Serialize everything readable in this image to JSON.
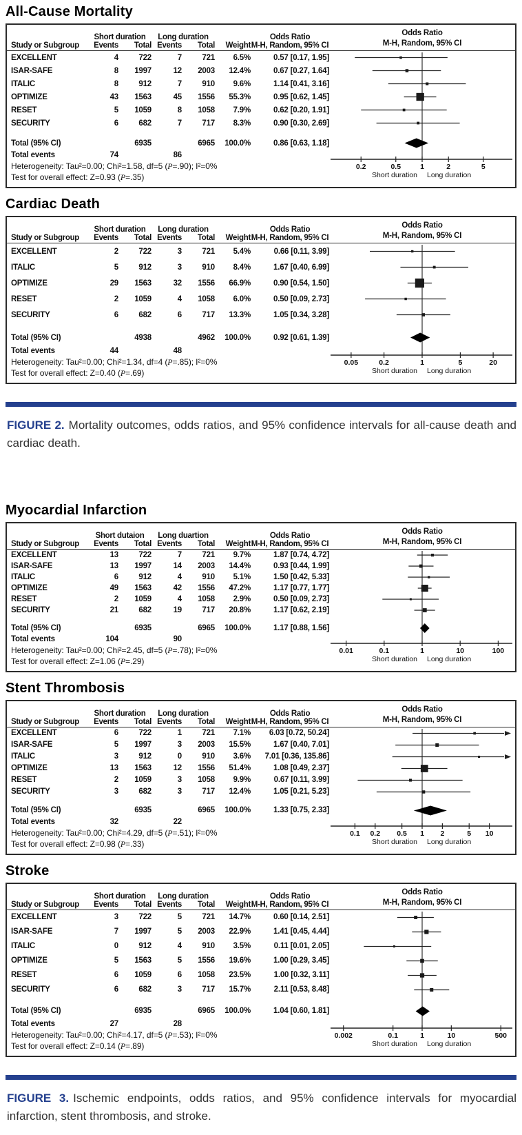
{
  "page": {
    "background": "#ffffff",
    "accent_navy": "#24408e",
    "border_color": "#2b2b2b"
  },
  "captions": [
    {
      "label": "FIGURE 2.",
      "text": "Mortality outcomes, odds ratios, and 95% confidence intervals for all-cause death and cardiac death."
    },
    {
      "label": "FIGURE 3.",
      "text": "Ischemic endpoints, odds ratios, and 95% confidence intervals for myocardial infarction, stent thrombosis, and stroke."
    }
  ],
  "chart_data": [
    {
      "type": "scatter",
      "subtype": "forest-plot",
      "title": "All-Cause Mortality",
      "group1_header": "Short duration",
      "group2_header": "Long duration",
      "or_header": "Odds Ratio",
      "method_header": "M-H, Random, 95% CI",
      "col_headers": [
        "Study or Subgroup",
        "Events",
        "Total",
        "Events",
        "Total",
        "Weight"
      ],
      "studies": [
        {
          "name": "EXCELLENT",
          "events1": "4",
          "total1": "722",
          "events2": "7",
          "total2": "721",
          "weight": "6.5%",
          "weight_pct": 6.5,
          "or": 0.57,
          "ci_lo": 0.17,
          "ci_hi": 1.95,
          "or_text": "0.57 [0.17, 1.95]"
        },
        {
          "name": "ISAR-SAFE",
          "events1": "8",
          "total1": "1997",
          "events2": "12",
          "total2": "2003",
          "weight": "12.4%",
          "weight_pct": 12.4,
          "or": 0.67,
          "ci_lo": 0.27,
          "ci_hi": 1.64,
          "or_text": "0.67 [0.27, 1.64]"
        },
        {
          "name": "ITALIC",
          "events1": "8",
          "total1": "912",
          "events2": "7",
          "total2": "910",
          "weight": "9.6%",
          "weight_pct": 9.6,
          "or": 1.14,
          "ci_lo": 0.41,
          "ci_hi": 3.16,
          "or_text": "1.14 [0.41, 3.16]"
        },
        {
          "name": "OPTIMIZE",
          "events1": "43",
          "total1": "1563",
          "events2": "45",
          "total2": "1556",
          "weight": "55.3%",
          "weight_pct": 55.3,
          "or": 0.95,
          "ci_lo": 0.62,
          "ci_hi": 1.45,
          "or_text": "0.95 [0.62, 1.45]"
        },
        {
          "name": "RESET",
          "events1": "5",
          "total1": "1059",
          "events2": "8",
          "total2": "1058",
          "weight": "7.9%",
          "weight_pct": 7.9,
          "or": 0.62,
          "ci_lo": 0.2,
          "ci_hi": 1.91,
          "or_text": "0.62 [0.20, 1.91]"
        },
        {
          "name": "SECURITY",
          "events1": "6",
          "total1": "682",
          "events2": "7",
          "total2": "717",
          "weight": "8.3%",
          "weight_pct": 8.3,
          "or": 0.9,
          "ci_lo": 0.3,
          "ci_hi": 2.69,
          "or_text": "0.90 [0.30, 2.69]"
        }
      ],
      "total": {
        "label": "Total (95% CI)",
        "total1": "6935",
        "total2": "6965",
        "weight": "100.0%",
        "or": 0.86,
        "ci_lo": 0.63,
        "ci_hi": 1.18,
        "or_text": "0.86 [0.63, 1.18]"
      },
      "total_events": {
        "label": "Total events",
        "events1": "74",
        "events2": "86"
      },
      "heterogeneity": "Heterogeneity: Tau²=0.00; Chi²=1.58, df=5 (P=.90); I²=0%",
      "overall_test": "Test for overall effect: Z=0.93 (P=.35)",
      "axis_ticks": [
        0.2,
        0.5,
        1,
        2,
        5
      ],
      "xlabel_left": "Short duration",
      "xlabel_right": "Long duration"
    },
    {
      "type": "scatter",
      "subtype": "forest-plot",
      "title": "Cardiac Death",
      "group1_header": "Short duration",
      "group2_header": "Long duration",
      "or_header": "Odds Ratio",
      "method_header": "M-H, Random, 95% CI",
      "col_headers": [
        "Study or Subgroup",
        "Events",
        "Total",
        "Events",
        "Total",
        "Weight"
      ],
      "studies": [
        {
          "name": "EXCELLENT",
          "events1": "2",
          "total1": "722",
          "events2": "3",
          "total2": "721",
          "weight": "5.4%",
          "weight_pct": 5.4,
          "or": 0.66,
          "ci_lo": 0.11,
          "ci_hi": 3.99,
          "or_text": "0.66 [0.11, 3.99]"
        },
        {
          "name": "ITALIC",
          "events1": "5",
          "total1": "912",
          "events2": "3",
          "total2": "910",
          "weight": "8.4%",
          "weight_pct": 8.4,
          "or": 1.67,
          "ci_lo": 0.4,
          "ci_hi": 6.99,
          "or_text": "1.67 [0.40, 6.99]"
        },
        {
          "name": "OPTIMIZE",
          "events1": "29",
          "total1": "1563",
          "events2": "32",
          "total2": "1556",
          "weight": "66.9%",
          "weight_pct": 66.9,
          "or": 0.9,
          "ci_lo": 0.54,
          "ci_hi": 1.5,
          "or_text": "0.90 [0.54, 1.50]"
        },
        {
          "name": "RESET",
          "events1": "2",
          "total1": "1059",
          "events2": "4",
          "total2": "1058",
          "weight": "6.0%",
          "weight_pct": 6.0,
          "or": 0.5,
          "ci_lo": 0.09,
          "ci_hi": 2.73,
          "or_text": "0.50 [0.09, 2.73]"
        },
        {
          "name": "SECURITY",
          "events1": "6",
          "total1": "682",
          "events2": "6",
          "total2": "717",
          "weight": "13.3%",
          "weight_pct": 13.3,
          "or": 1.05,
          "ci_lo": 0.34,
          "ci_hi": 3.28,
          "or_text": "1.05 [0.34, 3.28]"
        }
      ],
      "total": {
        "label": "Total (95% CI)",
        "total1": "4938",
        "total2": "4962",
        "weight": "100.0%",
        "or": 0.92,
        "ci_lo": 0.61,
        "ci_hi": 1.39,
        "or_text": "0.92 [0.61, 1.39]"
      },
      "total_events": {
        "label": "Total events",
        "events1": "44",
        "events2": "48"
      },
      "heterogeneity": "Heterogeneity: Tau²=0.00; Chi²=1.34, df=4 (P=.85); I²=0%",
      "overall_test": "Test for overall effect: Z=0.40 (P=.69)",
      "axis_ticks": [
        0.05,
        0.2,
        1,
        5,
        20
      ],
      "xlabel_left": "Short duration",
      "xlabel_right": "Long duration"
    },
    {
      "type": "scatter",
      "subtype": "forest-plot",
      "title": "Myocardial Infarction",
      "group1_header": "Short dutaion",
      "group2_header": "Long duartion",
      "or_header": "Odds Ratio",
      "method_header": "M-H, Random, 95% CI",
      "col_headers": [
        "Study or Subgroup",
        "Events",
        "Total",
        "Events",
        "Total",
        "Weight"
      ],
      "studies": [
        {
          "name": "EXCELLENT",
          "events1": "13",
          "total1": "722",
          "events2": "7",
          "total2": "721",
          "weight": "9.7%",
          "weight_pct": 9.7,
          "or": 1.87,
          "ci_lo": 0.74,
          "ci_hi": 4.72,
          "or_text": "1.87 [0.74, 4.72]"
        },
        {
          "name": "ISAR-SAFE",
          "events1": "13",
          "total1": "1997",
          "events2": "14",
          "total2": "2003",
          "weight": "14.4%",
          "weight_pct": 14.4,
          "or": 0.93,
          "ci_lo": 0.44,
          "ci_hi": 1.99,
          "or_text": "0.93 [0.44, 1.99]"
        },
        {
          "name": "ITALIC",
          "events1": "6",
          "total1": "912",
          "events2": "4",
          "total2": "910",
          "weight": "5.1%",
          "weight_pct": 5.1,
          "or": 1.5,
          "ci_lo": 0.42,
          "ci_hi": 5.33,
          "or_text": "1.50 [0.42, 5.33]"
        },
        {
          "name": "OPTIMIZE",
          "events1": "49",
          "total1": "1563",
          "events2": "42",
          "total2": "1556",
          "weight": "47.2%",
          "weight_pct": 47.2,
          "or": 1.17,
          "ci_lo": 0.77,
          "ci_hi": 1.77,
          "or_text": "1.17 [0.77, 1.77]"
        },
        {
          "name": "RESET",
          "events1": "2",
          "total1": "1059",
          "events2": "4",
          "total2": "1058",
          "weight": "2.9%",
          "weight_pct": 2.9,
          "or": 0.5,
          "ci_lo": 0.09,
          "ci_hi": 2.73,
          "or_text": "0.50 [0.09, 2.73]"
        },
        {
          "name": "SECURITY",
          "events1": "21",
          "total1": "682",
          "events2": "19",
          "total2": "717",
          "weight": "20.8%",
          "weight_pct": 20.8,
          "or": 1.17,
          "ci_lo": 0.62,
          "ci_hi": 2.19,
          "or_text": "1.17 [0.62, 2.19]"
        }
      ],
      "total": {
        "label": "Total (95% CI)",
        "total1": "6935",
        "total2": "6965",
        "weight": "100.0%",
        "or": 1.17,
        "ci_lo": 0.88,
        "ci_hi": 1.56,
        "or_text": "1.17 [0.88, 1.56]"
      },
      "total_events": {
        "label": "Total events",
        "events1": "104",
        "events2": "90"
      },
      "heterogeneity": "Heterogeneity: Tau²=0.00; Chi²=2.45, df=5 (P=.78); I²=0%",
      "overall_test": "Test for overall effect: Z=1.06 (P=.29)",
      "axis_ticks": [
        0.01,
        0.1,
        1,
        10,
        100
      ],
      "xlabel_left": "Short duration",
      "xlabel_right": "Long duration"
    },
    {
      "type": "scatter",
      "subtype": "forest-plot",
      "title": "Stent Thrombosis",
      "group1_header": "Short duration",
      "group2_header": "Long duration",
      "or_header": "Odds Ratio",
      "method_header": "M-H, Random, 95% CI",
      "col_headers": [
        "Study or Subgroup",
        "Events",
        "Total",
        "Events",
        "Total",
        "Weight"
      ],
      "studies": [
        {
          "name": "EXCELLENT",
          "events1": "6",
          "total1": "722",
          "events2": "1",
          "total2": "721",
          "weight": "7.1%",
          "weight_pct": 7.1,
          "or": 6.03,
          "ci_lo": 0.72,
          "ci_hi": 50.24,
          "or_text": "6.03 [0.72, 50.24]"
        },
        {
          "name": "ISAR-SAFE",
          "events1": "5",
          "total1": "1997",
          "events2": "3",
          "total2": "2003",
          "weight": "15.5%",
          "weight_pct": 15.5,
          "or": 1.67,
          "ci_lo": 0.4,
          "ci_hi": 7.01,
          "or_text": "1.67 [0.40, 7.01]"
        },
        {
          "name": "ITALIC",
          "events1": "3",
          "total1": "912",
          "events2": "0",
          "total2": "910",
          "weight": "3.6%",
          "weight_pct": 3.6,
          "or": 7.01,
          "ci_lo": 0.36,
          "ci_hi": 135.86,
          "or_text": "7.01 [0.36, 135.86]"
        },
        {
          "name": "OPTIMIZE",
          "events1": "13",
          "total1": "1563",
          "events2": "12",
          "total2": "1556",
          "weight": "51.4%",
          "weight_pct": 51.4,
          "or": 1.08,
          "ci_lo": 0.49,
          "ci_hi": 2.37,
          "or_text": "1.08 [0.49, 2.37]"
        },
        {
          "name": "RESET",
          "events1": "2",
          "total1": "1059",
          "events2": "3",
          "total2": "1058",
          "weight": "9.9%",
          "weight_pct": 9.9,
          "or": 0.67,
          "ci_lo": 0.11,
          "ci_hi": 3.99,
          "or_text": "0.67 [0.11, 3.99]"
        },
        {
          "name": "SECURITY",
          "events1": "3",
          "total1": "682",
          "events2": "3",
          "total2": "717",
          "weight": "12.4%",
          "weight_pct": 12.4,
          "or": 1.05,
          "ci_lo": 0.21,
          "ci_hi": 5.23,
          "or_text": "1.05 [0.21, 5.23]"
        }
      ],
      "total": {
        "label": "Total (95% CI)",
        "total1": "6935",
        "total2": "6965",
        "weight": "100.0%",
        "or": 1.33,
        "ci_lo": 0.75,
        "ci_hi": 2.33,
        "or_text": "1.33 [0.75, 2.33]"
      },
      "total_events": {
        "label": "Total events",
        "events1": "32",
        "events2": "22"
      },
      "heterogeneity": "Heterogeneity: Tau²=0.00; Chi²=4.29, df=5 (P=.51); I²=0%",
      "overall_test": "Test for overall effect: Z=0.98 (P=.33)",
      "axis_ticks": [
        0.1,
        0.2,
        0.5,
        1,
        2,
        5,
        10
      ],
      "xlabel_left": "Short duration",
      "xlabel_right": "Long duration"
    },
    {
      "type": "scatter",
      "subtype": "forest-plot",
      "title": "Stroke",
      "group1_header": "Short duration",
      "group2_header": "Long duration",
      "or_header": "Odds Ratio",
      "method_header": "M-H, Random, 95% CI",
      "col_headers": [
        "Study or Subgroup",
        "Events",
        "Total",
        "Events",
        "Total",
        "Weight"
      ],
      "studies": [
        {
          "name": "EXCELLENT",
          "events1": "3",
          "total1": "722",
          "events2": "5",
          "total2": "721",
          "weight": "14.7%",
          "weight_pct": 14.7,
          "or": 0.6,
          "ci_lo": 0.14,
          "ci_hi": 2.51,
          "or_text": "0.60 [0.14, 2.51]"
        },
        {
          "name": "ISAR-SAFE",
          "events1": "7",
          "total1": "1997",
          "events2": "5",
          "total2": "2003",
          "weight": "22.9%",
          "weight_pct": 22.9,
          "or": 1.41,
          "ci_lo": 0.45,
          "ci_hi": 4.44,
          "or_text": "1.41 [0.45, 4.44]"
        },
        {
          "name": "ITALIC",
          "events1": "0",
          "total1": "912",
          "events2": "4",
          "total2": "910",
          "weight": "3.5%",
          "weight_pct": 3.5,
          "or": 0.11,
          "ci_lo": 0.01,
          "ci_hi": 2.05,
          "or_text": "0.11 [0.01, 2.05]"
        },
        {
          "name": "OPTIMIZE",
          "events1": "5",
          "total1": "1563",
          "events2": "5",
          "total2": "1556",
          "weight": "19.6%",
          "weight_pct": 19.6,
          "or": 1.0,
          "ci_lo": 0.29,
          "ci_hi": 3.45,
          "or_text": "1.00 [0.29, 3.45]"
        },
        {
          "name": "RESET",
          "events1": "6",
          "total1": "1059",
          "events2": "6",
          "total2": "1058",
          "weight": "23.5%",
          "weight_pct": 23.5,
          "or": 1.0,
          "ci_lo": 0.32,
          "ci_hi": 3.11,
          "or_text": "1.00 [0.32, 3.11]"
        },
        {
          "name": "SECURITY",
          "events1": "6",
          "total1": "682",
          "events2": "3",
          "total2": "717",
          "weight": "15.7%",
          "weight_pct": 15.7,
          "or": 2.11,
          "ci_lo": 0.53,
          "ci_hi": 8.48,
          "or_text": "2.11 [0.53, 8.48]"
        }
      ],
      "total": {
        "label": "Total (95% CI)",
        "total1": "6935",
        "total2": "6965",
        "weight": "100.0%",
        "or": 1.04,
        "ci_lo": 0.6,
        "ci_hi": 1.81,
        "or_text": "1.04 [0.60, 1.81]"
      },
      "total_events": {
        "label": "Total events",
        "events1": "27",
        "events2": "28"
      },
      "heterogeneity": "Heterogeneity: Tau²=0.00; Chi²=4.17, df=5 (P=.53); I²=0%",
      "overall_test": "Test for overall effect: Z=0.14 (P=.89)",
      "axis_ticks": [
        0.002,
        0.1,
        1,
        10,
        500
      ],
      "xlabel_left": "Short duration",
      "xlabel_right": "Long duration"
    }
  ]
}
